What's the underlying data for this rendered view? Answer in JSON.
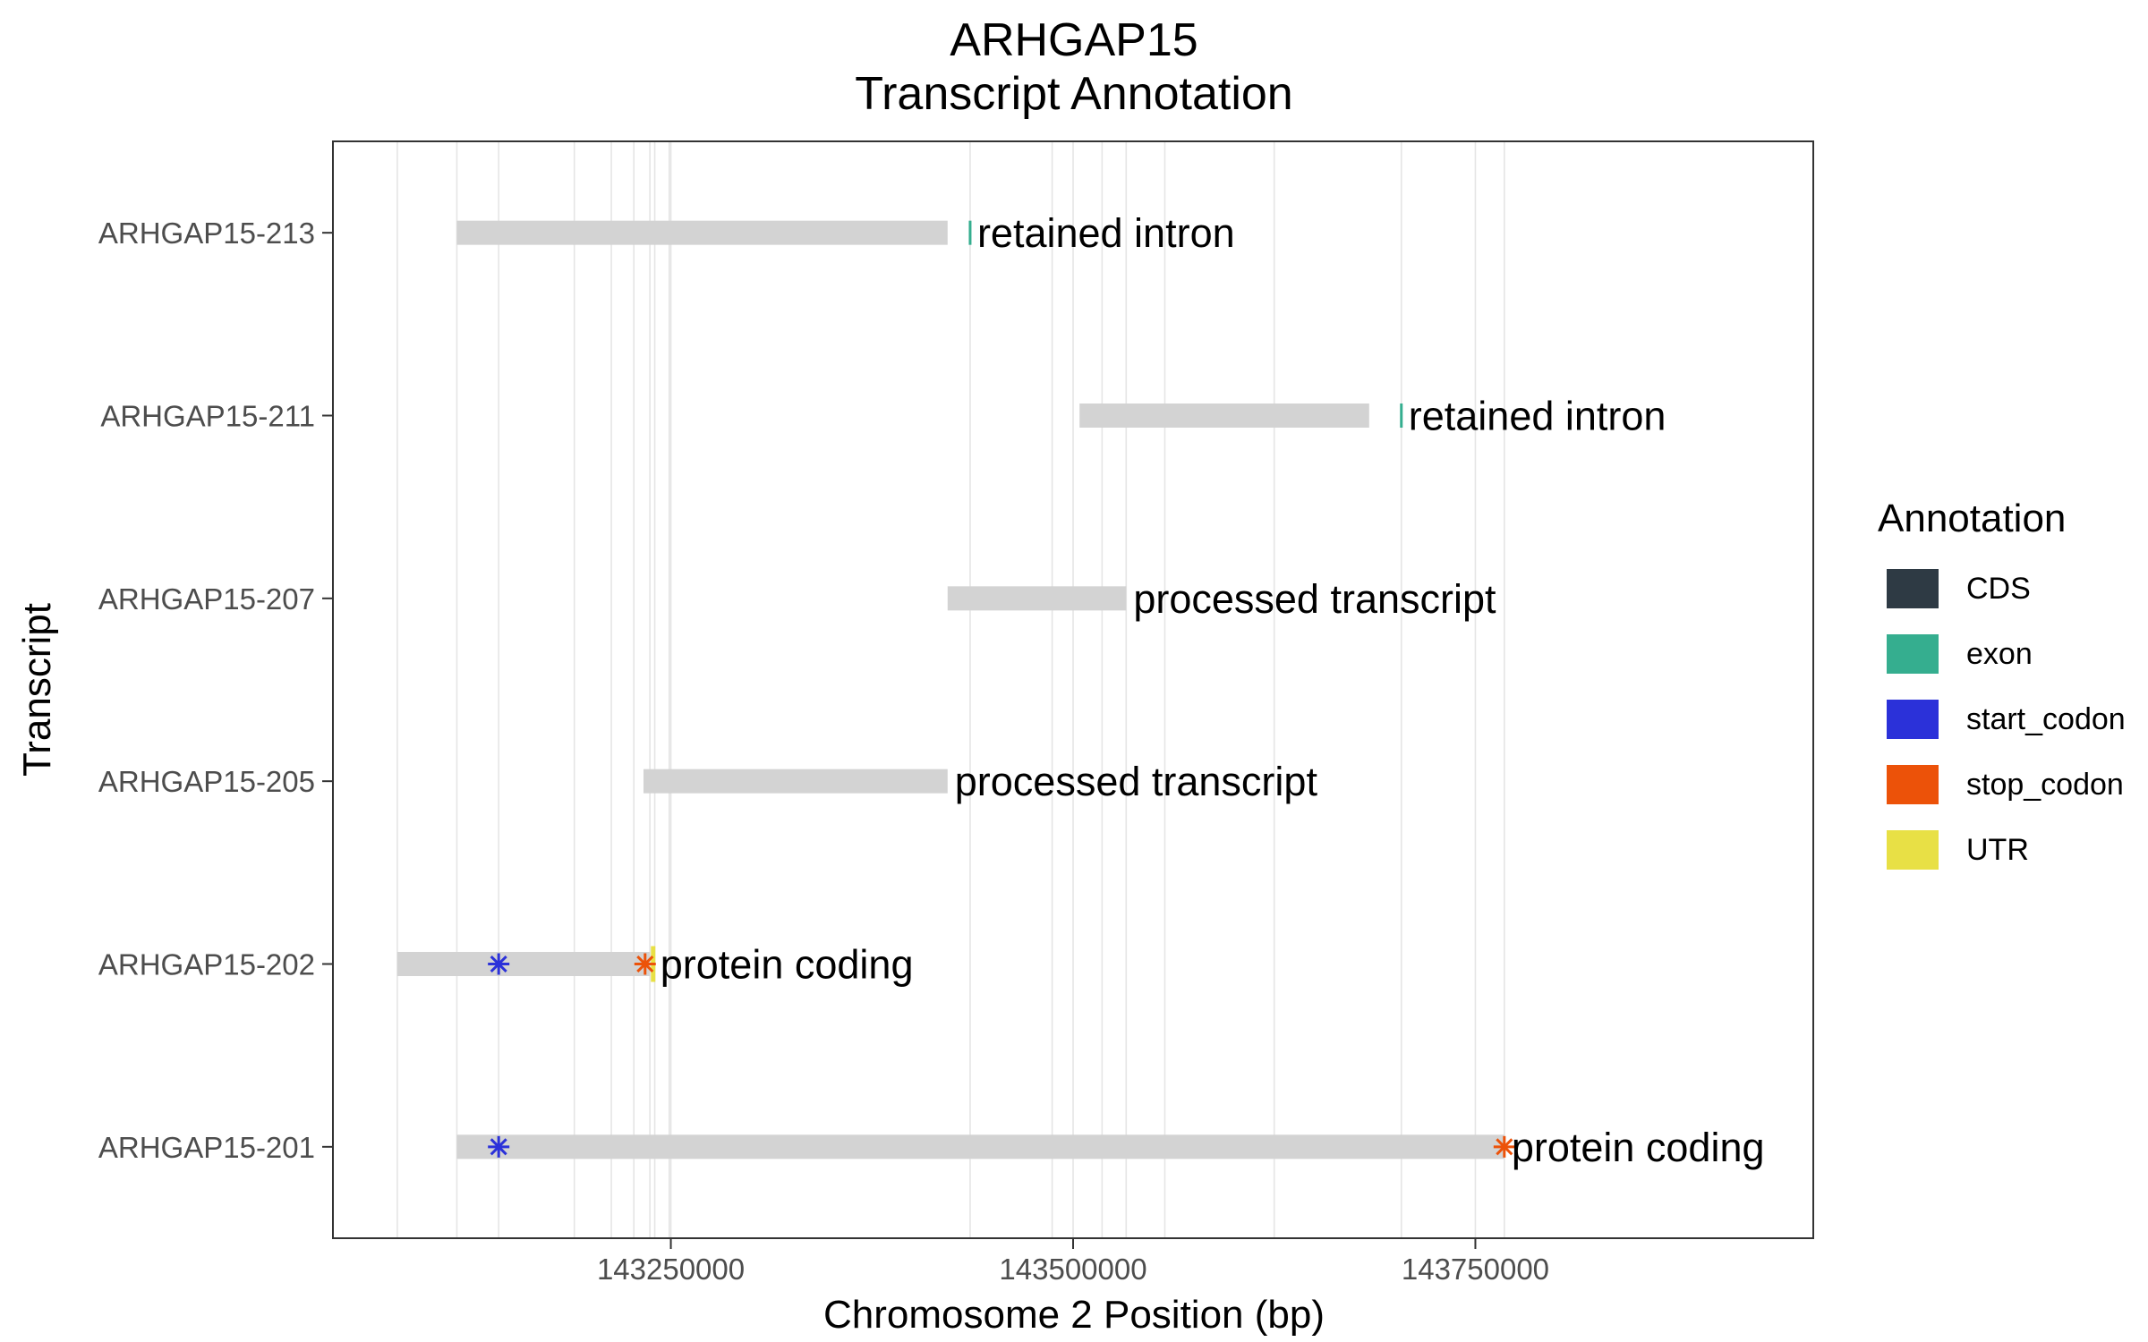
{
  "chart_data": {
    "type": "gene-track",
    "title": [
      "ARHGAP15",
      "Transcript Annotation"
    ],
    "xlabel": "Chromosome 2 Position (bp)",
    "ylabel": "Transcript",
    "xlim": [
      143040000,
      143960000
    ],
    "x_ticks": [
      143250000,
      143500000,
      143750000
    ],
    "x_tick_labels": [
      "143250000",
      "143500000",
      "143750000"
    ],
    "x_grid": [
      143080000,
      143117000,
      143143000,
      143190000,
      143213000,
      143227000,
      143237000,
      143240000,
      143249000,
      143436000,
      143487000,
      143518000,
      143533000,
      143557000,
      143625000,
      143704000,
      143768000
    ],
    "transcripts": [
      {
        "name": "ARHGAP15-213",
        "biotype": "retained intron",
        "start": 143117000,
        "end": 143422000,
        "exons": [
          143436000
        ]
      },
      {
        "name": "ARHGAP15-211",
        "biotype": "retained intron",
        "start": 143504000,
        "end": 143684000,
        "exons": [
          143704000
        ]
      },
      {
        "name": "ARHGAP15-207",
        "biotype": "processed transcript",
        "start": 143422000,
        "end": 143533000,
        "exons": []
      },
      {
        "name": "ARHGAP15-205",
        "biotype": "processed transcript",
        "start": 143233000,
        "end": 143422000,
        "exons": []
      },
      {
        "name": "ARHGAP15-202",
        "biotype": "protein coding",
        "start": 143080000,
        "end": 143237000,
        "start_codon": 143143000,
        "stop_codon": 143234000,
        "utr": 143239000
      },
      {
        "name": "ARHGAP15-201",
        "biotype": "protein coding",
        "start": 143117000,
        "end": 143768000,
        "start_codon": 143143000,
        "stop_codon": 143768000
      }
    ],
    "legend": {
      "title": "Annotation",
      "position": "right",
      "items": [
        {
          "label": "CDS",
          "color": "#2e3a44"
        },
        {
          "label": "exon",
          "color": "#35ae8f"
        },
        {
          "label": "start_codon",
          "color": "#2b31d9"
        },
        {
          "label": "stop_codon",
          "color": "#ec5209"
        },
        {
          "label": "UTR",
          "color": "#e8e045"
        }
      ]
    },
    "bar_color": "#d3d3d3",
    "grid_color": "#e5e5e5",
    "panel_border": "#333333"
  }
}
